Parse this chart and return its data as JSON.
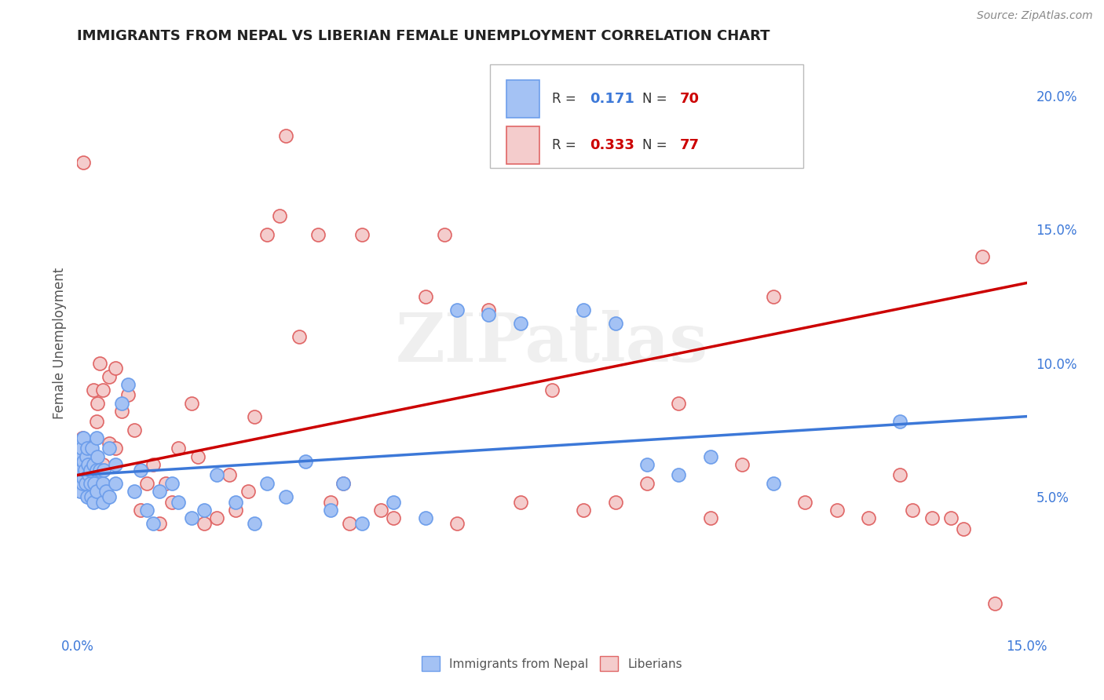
{
  "title": "IMMIGRANTS FROM NEPAL VS LIBERIAN FEMALE UNEMPLOYMENT CORRELATION CHART",
  "source": "Source: ZipAtlas.com",
  "ylabel": "Female Unemployment",
  "x_min": 0.0,
  "x_max": 0.15,
  "y_min": 0.0,
  "y_max": 0.215,
  "nepal_color": "#c9daf8",
  "liberian_color": "#fce5cd",
  "nepal_fill": "#a4c2f4",
  "liberian_fill": "#f4cccc",
  "nepal_edge_color": "#6d9eeb",
  "liberian_edge_color": "#e06666",
  "nepal_line_color": "#3c78d8",
  "liberian_line_color": "#cc0000",
  "R_color": "#3c78d8",
  "N_color": "#cc0000",
  "legend_R_nepal": "0.171",
  "legend_N_nepal": "70",
  "legend_R_liberian": "0.333",
  "legend_N_liberian": "77",
  "watermark": "ZIPatlas",
  "background_color": "#ffffff",
  "grid_color": "#e0e0e0",
  "nepal_scatter_x": [
    0.0002,
    0.0003,
    0.0004,
    0.0005,
    0.0005,
    0.0006,
    0.0007,
    0.0008,
    0.0009,
    0.001,
    0.001,
    0.0012,
    0.0013,
    0.0014,
    0.0015,
    0.0016,
    0.0017,
    0.0018,
    0.002,
    0.002,
    0.0022,
    0.0023,
    0.0025,
    0.0026,
    0.0027,
    0.003,
    0.003,
    0.003,
    0.0032,
    0.0035,
    0.004,
    0.004,
    0.0042,
    0.0045,
    0.005,
    0.005,
    0.006,
    0.006,
    0.007,
    0.008,
    0.009,
    0.01,
    0.011,
    0.012,
    0.013,
    0.015,
    0.016,
    0.018,
    0.02,
    0.022,
    0.025,
    0.028,
    0.03,
    0.033,
    0.036,
    0.04,
    0.042,
    0.045,
    0.05,
    0.055,
    0.06,
    0.065,
    0.07,
    0.08,
    0.085,
    0.09,
    0.095,
    0.1,
    0.11,
    0.13
  ],
  "nepal_scatter_y": [
    0.062,
    0.058,
    0.065,
    0.052,
    0.07,
    0.06,
    0.068,
    0.055,
    0.063,
    0.057,
    0.072,
    0.06,
    0.055,
    0.065,
    0.05,
    0.068,
    0.062,
    0.058,
    0.06,
    0.055,
    0.05,
    0.068,
    0.062,
    0.048,
    0.055,
    0.072,
    0.06,
    0.052,
    0.065,
    0.06,
    0.055,
    0.048,
    0.06,
    0.052,
    0.05,
    0.068,
    0.055,
    0.062,
    0.085,
    0.092,
    0.052,
    0.06,
    0.045,
    0.04,
    0.052,
    0.055,
    0.048,
    0.042,
    0.045,
    0.058,
    0.048,
    0.04,
    0.055,
    0.05,
    0.063,
    0.045,
    0.055,
    0.04,
    0.048,
    0.042,
    0.12,
    0.118,
    0.115,
    0.12,
    0.115,
    0.062,
    0.058,
    0.065,
    0.055,
    0.078
  ],
  "liberian_scatter_x": [
    0.0002,
    0.0003,
    0.0005,
    0.0006,
    0.0008,
    0.001,
    0.001,
    0.0012,
    0.0014,
    0.0015,
    0.0017,
    0.002,
    0.002,
    0.0022,
    0.0025,
    0.003,
    0.003,
    0.0032,
    0.0035,
    0.004,
    0.004,
    0.005,
    0.005,
    0.006,
    0.006,
    0.007,
    0.008,
    0.009,
    0.01,
    0.011,
    0.012,
    0.013,
    0.014,
    0.015,
    0.016,
    0.018,
    0.019,
    0.02,
    0.022,
    0.024,
    0.025,
    0.027,
    0.028,
    0.03,
    0.032,
    0.033,
    0.035,
    0.038,
    0.04,
    0.042,
    0.043,
    0.045,
    0.048,
    0.05,
    0.055,
    0.058,
    0.06,
    0.065,
    0.07,
    0.075,
    0.08,
    0.085,
    0.09,
    0.095,
    0.1,
    0.105,
    0.11,
    0.115,
    0.12,
    0.125,
    0.13,
    0.132,
    0.135,
    0.138,
    0.14,
    0.143,
    0.145
  ],
  "liberian_scatter_y": [
    0.062,
    0.058,
    0.068,
    0.055,
    0.072,
    0.06,
    0.175,
    0.065,
    0.07,
    0.052,
    0.06,
    0.068,
    0.058,
    0.062,
    0.09,
    0.065,
    0.078,
    0.085,
    0.1,
    0.062,
    0.09,
    0.095,
    0.07,
    0.068,
    0.098,
    0.082,
    0.088,
    0.075,
    0.045,
    0.055,
    0.062,
    0.04,
    0.055,
    0.048,
    0.068,
    0.085,
    0.065,
    0.04,
    0.042,
    0.058,
    0.045,
    0.052,
    0.08,
    0.148,
    0.155,
    0.185,
    0.11,
    0.148,
    0.048,
    0.055,
    0.04,
    0.148,
    0.045,
    0.042,
    0.125,
    0.148,
    0.04,
    0.12,
    0.048,
    0.09,
    0.045,
    0.048,
    0.055,
    0.085,
    0.042,
    0.062,
    0.125,
    0.048,
    0.045,
    0.042,
    0.058,
    0.045,
    0.042,
    0.042,
    0.038,
    0.14,
    0.01
  ],
  "nepal_line_y_start": 0.058,
  "nepal_line_y_end": 0.08,
  "liberian_line_y_start": 0.058,
  "liberian_line_y_end": 0.13
}
